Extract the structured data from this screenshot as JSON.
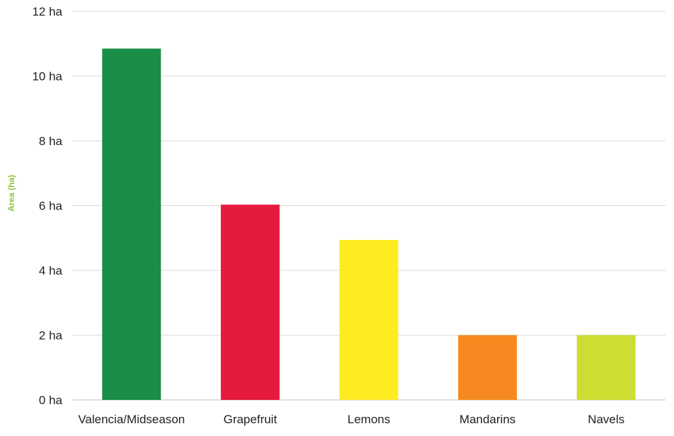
{
  "chart_data": {
    "type": "bar",
    "title": "",
    "xlabel": "",
    "ylabel": "Area (ha)",
    "ylabel_color": "#8dc63f",
    "ylim": [
      0,
      12
    ],
    "ytick_step": 2,
    "ytick_suffix": " ha",
    "grid": true,
    "legend": "none",
    "categories": [
      "Valencia/Midseason",
      "Grapefruit",
      "Lemons",
      "Mandarins",
      "Navels"
    ],
    "values": [
      10.85,
      6.03,
      4.94,
      2.0,
      2.0
    ],
    "colors": [
      "#1a8d48",
      "#e51b3e",
      "#fcec21",
      "#f68a20",
      "#cedd32"
    ]
  }
}
